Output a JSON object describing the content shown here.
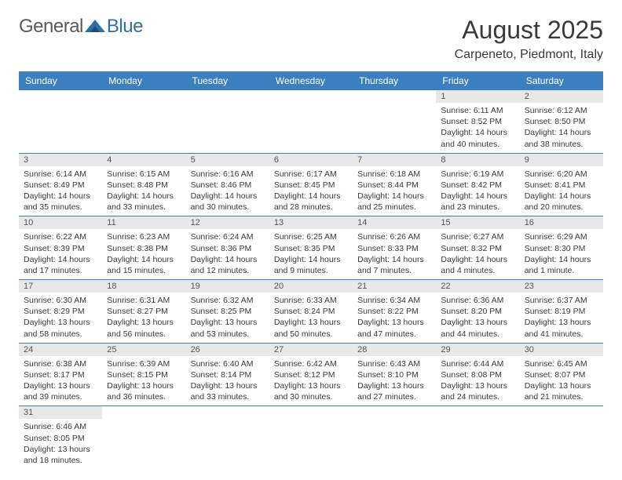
{
  "logo": {
    "general": "General",
    "blue": "Blue"
  },
  "title": "August 2025",
  "location": "Carpeneto, Piedmont, Italy",
  "colors": {
    "header_bg": "#3b7fbf",
    "header_fg": "#ffffff",
    "daynum_bg": "#e8e8e8",
    "rule": "#3b7fbf",
    "logo_blue": "#2f6fa8",
    "logo_grey": "#5a5a5a",
    "text": "#3a3a3a"
  },
  "weekdays": [
    "Sunday",
    "Monday",
    "Tuesday",
    "Wednesday",
    "Thursday",
    "Friday",
    "Saturday"
  ],
  "weeks": [
    [
      {
        "n": "",
        "sr": "",
        "ss": "",
        "dl": ""
      },
      {
        "n": "",
        "sr": "",
        "ss": "",
        "dl": ""
      },
      {
        "n": "",
        "sr": "",
        "ss": "",
        "dl": ""
      },
      {
        "n": "",
        "sr": "",
        "ss": "",
        "dl": ""
      },
      {
        "n": "",
        "sr": "",
        "ss": "",
        "dl": ""
      },
      {
        "n": "1",
        "sr": "Sunrise: 6:11 AM",
        "ss": "Sunset: 8:52 PM",
        "dl": "Daylight: 14 hours and 40 minutes."
      },
      {
        "n": "2",
        "sr": "Sunrise: 6:12 AM",
        "ss": "Sunset: 8:50 PM",
        "dl": "Daylight: 14 hours and 38 minutes."
      }
    ],
    [
      {
        "n": "3",
        "sr": "Sunrise: 6:14 AM",
        "ss": "Sunset: 8:49 PM",
        "dl": "Daylight: 14 hours and 35 minutes."
      },
      {
        "n": "4",
        "sr": "Sunrise: 6:15 AM",
        "ss": "Sunset: 8:48 PM",
        "dl": "Daylight: 14 hours and 33 minutes."
      },
      {
        "n": "5",
        "sr": "Sunrise: 6:16 AM",
        "ss": "Sunset: 8:46 PM",
        "dl": "Daylight: 14 hours and 30 minutes."
      },
      {
        "n": "6",
        "sr": "Sunrise: 6:17 AM",
        "ss": "Sunset: 8:45 PM",
        "dl": "Daylight: 14 hours and 28 minutes."
      },
      {
        "n": "7",
        "sr": "Sunrise: 6:18 AM",
        "ss": "Sunset: 8:44 PM",
        "dl": "Daylight: 14 hours and 25 minutes."
      },
      {
        "n": "8",
        "sr": "Sunrise: 6:19 AM",
        "ss": "Sunset: 8:42 PM",
        "dl": "Daylight: 14 hours and 23 minutes."
      },
      {
        "n": "9",
        "sr": "Sunrise: 6:20 AM",
        "ss": "Sunset: 8:41 PM",
        "dl": "Daylight: 14 hours and 20 minutes."
      }
    ],
    [
      {
        "n": "10",
        "sr": "Sunrise: 6:22 AM",
        "ss": "Sunset: 8:39 PM",
        "dl": "Daylight: 14 hours and 17 minutes."
      },
      {
        "n": "11",
        "sr": "Sunrise: 6:23 AM",
        "ss": "Sunset: 8:38 PM",
        "dl": "Daylight: 14 hours and 15 minutes."
      },
      {
        "n": "12",
        "sr": "Sunrise: 6:24 AM",
        "ss": "Sunset: 8:36 PM",
        "dl": "Daylight: 14 hours and 12 minutes."
      },
      {
        "n": "13",
        "sr": "Sunrise: 6:25 AM",
        "ss": "Sunset: 8:35 PM",
        "dl": "Daylight: 14 hours and 9 minutes."
      },
      {
        "n": "14",
        "sr": "Sunrise: 6:26 AM",
        "ss": "Sunset: 8:33 PM",
        "dl": "Daylight: 14 hours and 7 minutes."
      },
      {
        "n": "15",
        "sr": "Sunrise: 6:27 AM",
        "ss": "Sunset: 8:32 PM",
        "dl": "Daylight: 14 hours and 4 minutes."
      },
      {
        "n": "16",
        "sr": "Sunrise: 6:29 AM",
        "ss": "Sunset: 8:30 PM",
        "dl": "Daylight: 14 hours and 1 minute."
      }
    ],
    [
      {
        "n": "17",
        "sr": "Sunrise: 6:30 AM",
        "ss": "Sunset: 8:29 PM",
        "dl": "Daylight: 13 hours and 58 minutes."
      },
      {
        "n": "18",
        "sr": "Sunrise: 6:31 AM",
        "ss": "Sunset: 8:27 PM",
        "dl": "Daylight: 13 hours and 56 minutes."
      },
      {
        "n": "19",
        "sr": "Sunrise: 6:32 AM",
        "ss": "Sunset: 8:25 PM",
        "dl": "Daylight: 13 hours and 53 minutes."
      },
      {
        "n": "20",
        "sr": "Sunrise: 6:33 AM",
        "ss": "Sunset: 8:24 PM",
        "dl": "Daylight: 13 hours and 50 minutes."
      },
      {
        "n": "21",
        "sr": "Sunrise: 6:34 AM",
        "ss": "Sunset: 8:22 PM",
        "dl": "Daylight: 13 hours and 47 minutes."
      },
      {
        "n": "22",
        "sr": "Sunrise: 6:36 AM",
        "ss": "Sunset: 8:20 PM",
        "dl": "Daylight: 13 hours and 44 minutes."
      },
      {
        "n": "23",
        "sr": "Sunrise: 6:37 AM",
        "ss": "Sunset: 8:19 PM",
        "dl": "Daylight: 13 hours and 41 minutes."
      }
    ],
    [
      {
        "n": "24",
        "sr": "Sunrise: 6:38 AM",
        "ss": "Sunset: 8:17 PM",
        "dl": "Daylight: 13 hours and 39 minutes."
      },
      {
        "n": "25",
        "sr": "Sunrise: 6:39 AM",
        "ss": "Sunset: 8:15 PM",
        "dl": "Daylight: 13 hours and 36 minutes."
      },
      {
        "n": "26",
        "sr": "Sunrise: 6:40 AM",
        "ss": "Sunset: 8:14 PM",
        "dl": "Daylight: 13 hours and 33 minutes."
      },
      {
        "n": "27",
        "sr": "Sunrise: 6:42 AM",
        "ss": "Sunset: 8:12 PM",
        "dl": "Daylight: 13 hours and 30 minutes."
      },
      {
        "n": "28",
        "sr": "Sunrise: 6:43 AM",
        "ss": "Sunset: 8:10 PM",
        "dl": "Daylight: 13 hours and 27 minutes."
      },
      {
        "n": "29",
        "sr": "Sunrise: 6:44 AM",
        "ss": "Sunset: 8:08 PM",
        "dl": "Daylight: 13 hours and 24 minutes."
      },
      {
        "n": "30",
        "sr": "Sunrise: 6:45 AM",
        "ss": "Sunset: 8:07 PM",
        "dl": "Daylight: 13 hours and 21 minutes."
      }
    ],
    [
      {
        "n": "31",
        "sr": "Sunrise: 6:46 AM",
        "ss": "Sunset: 8:05 PM",
        "dl": "Daylight: 13 hours and 18 minutes."
      },
      {
        "n": "",
        "sr": "",
        "ss": "",
        "dl": ""
      },
      {
        "n": "",
        "sr": "",
        "ss": "",
        "dl": ""
      },
      {
        "n": "",
        "sr": "",
        "ss": "",
        "dl": ""
      },
      {
        "n": "",
        "sr": "",
        "ss": "",
        "dl": ""
      },
      {
        "n": "",
        "sr": "",
        "ss": "",
        "dl": ""
      },
      {
        "n": "",
        "sr": "",
        "ss": "",
        "dl": ""
      }
    ]
  ]
}
